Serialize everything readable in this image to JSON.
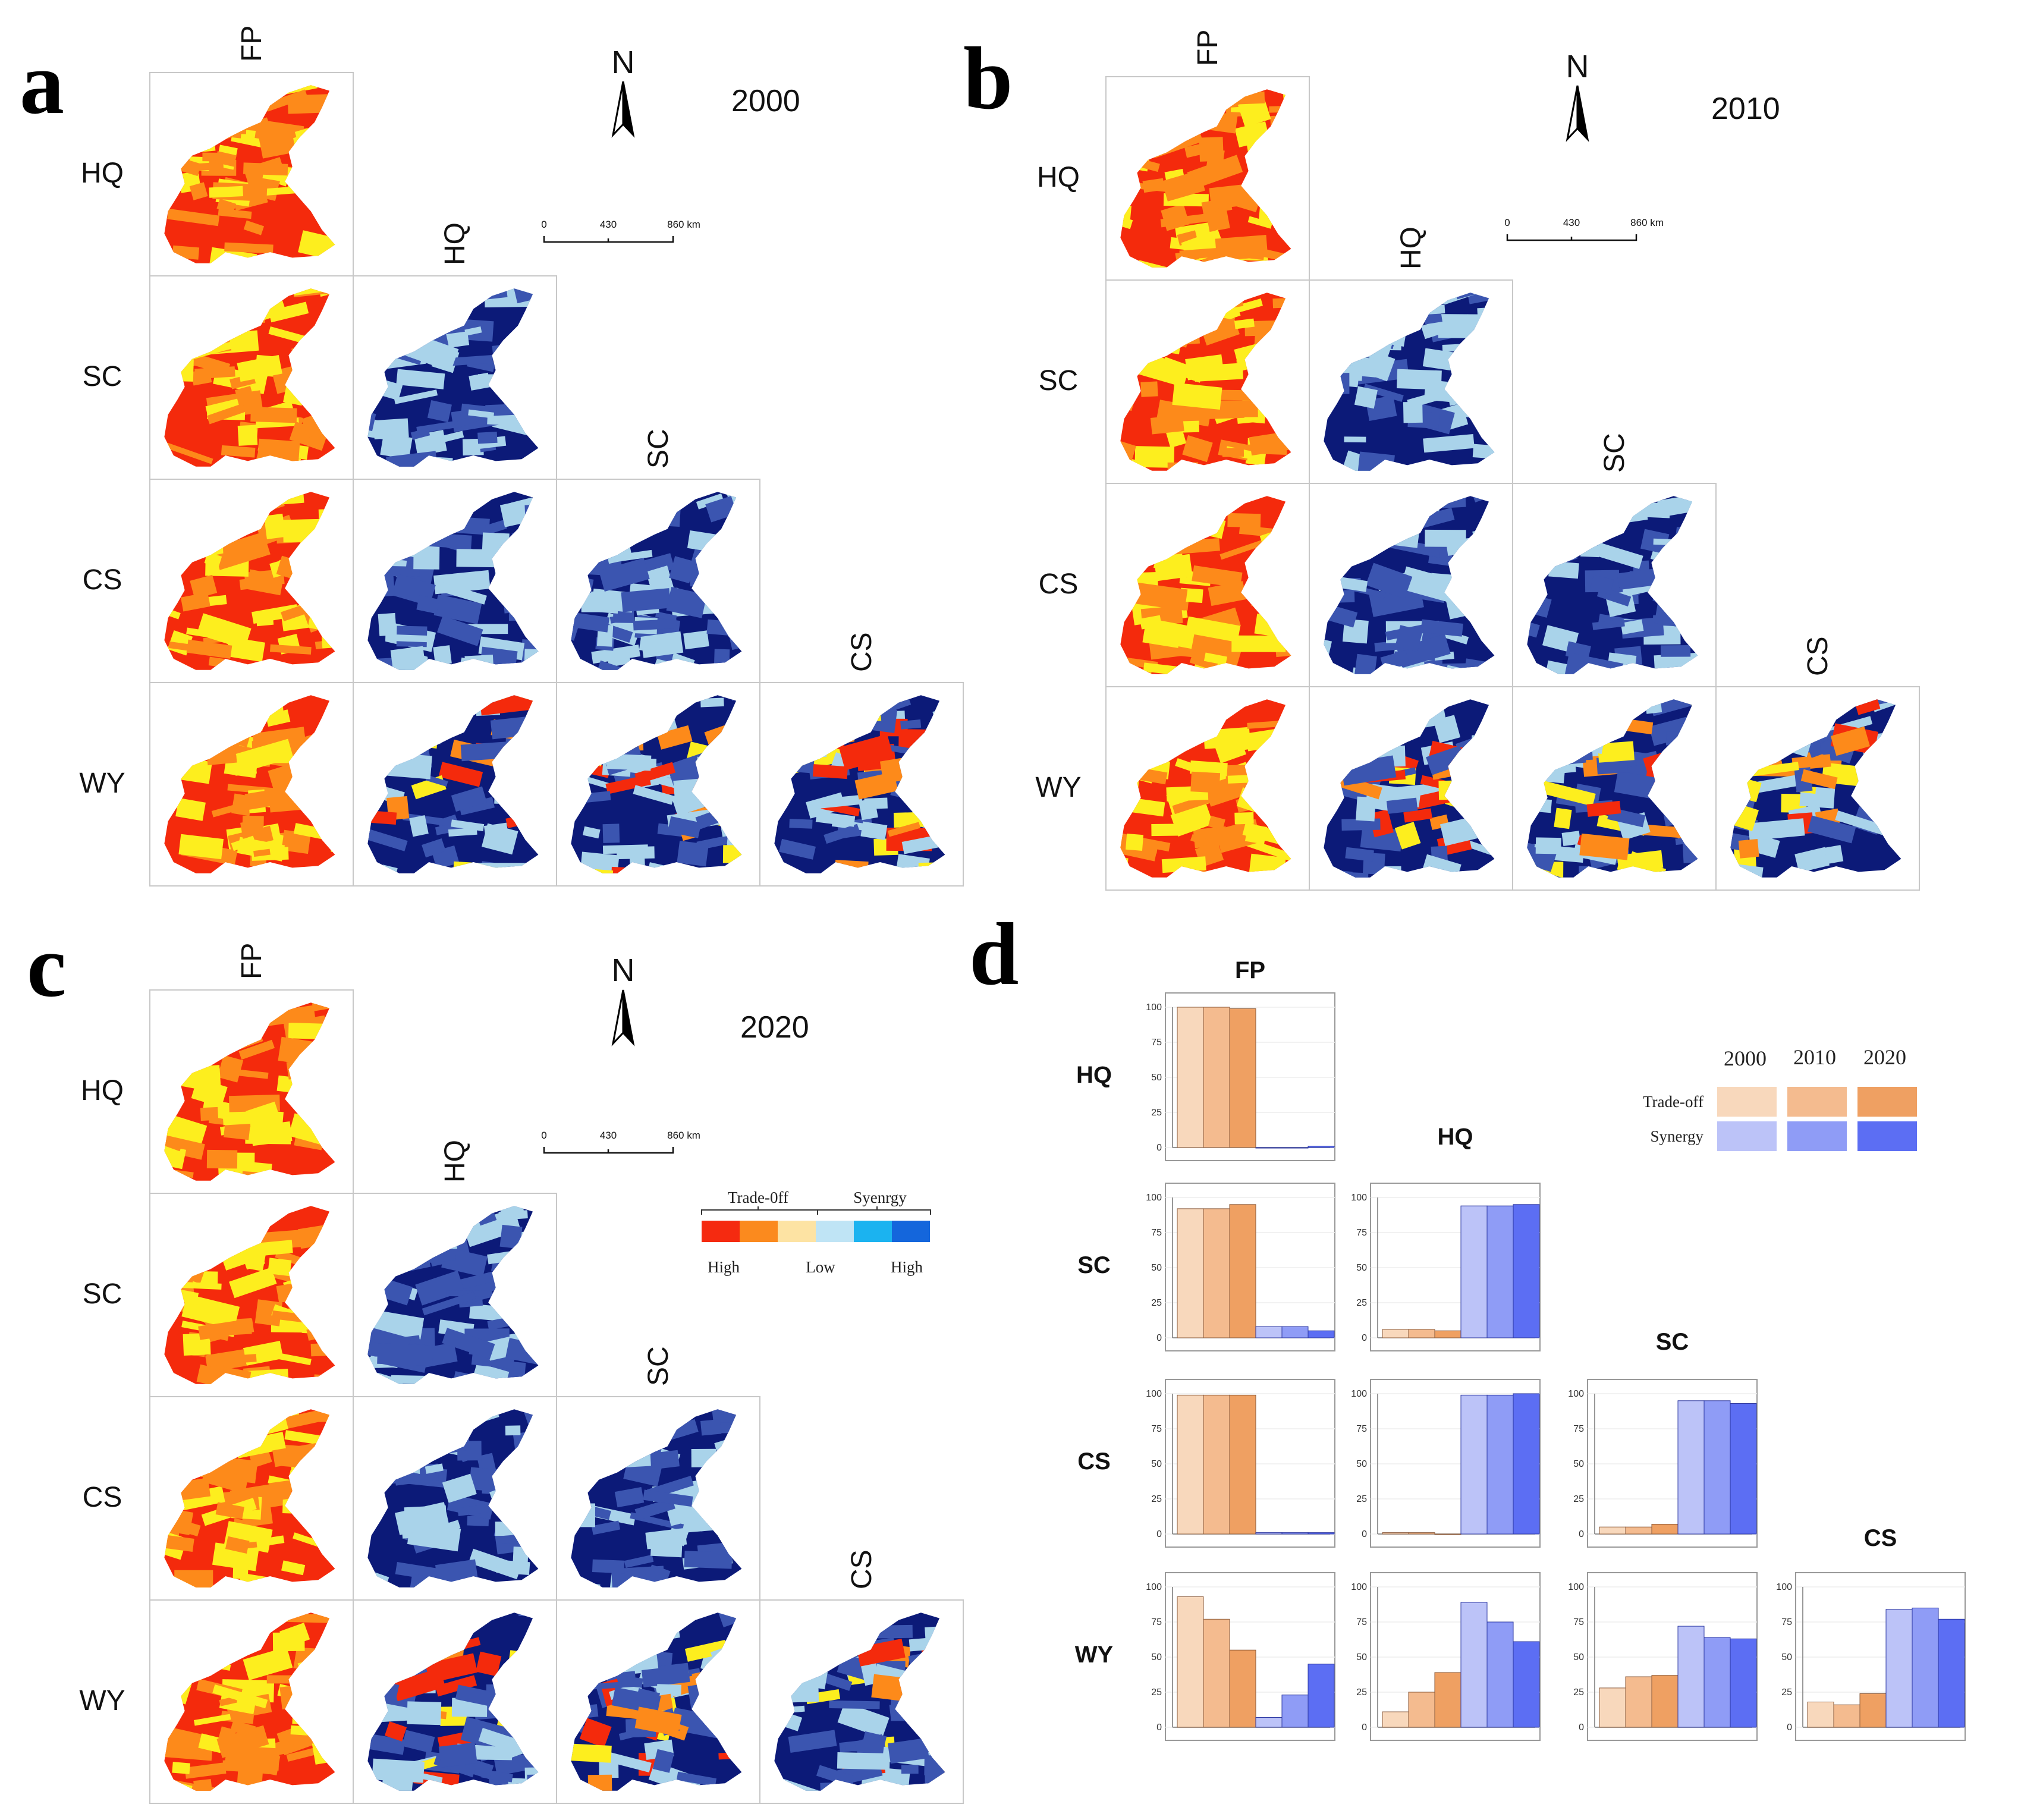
{
  "panels": {
    "a": {
      "letter": "a",
      "year": "2000"
    },
    "b": {
      "letter": "b",
      "year": "2010"
    },
    "c": {
      "letter": "c",
      "year": "2020"
    },
    "d": {
      "letter": "d"
    }
  },
  "matrix": {
    "row_labels": [
      "HQ",
      "SC",
      "CS",
      "WY"
    ],
    "col_labels": [
      "FP",
      "HQ",
      "SC",
      "CS"
    ]
  },
  "north_label": "N",
  "scale_bar": {
    "ticks": [
      "0",
      "430",
      "860 km"
    ]
  },
  "map_legend": {
    "trade_off": "Trade-0ff",
    "synergy": "Syenrgy",
    "high_left": "High",
    "low": "Low",
    "high_right": "High",
    "colors": [
      "#f52a10",
      "#fb8a1e",
      "#fde3a3",
      "#bfe4f5",
      "#1bb3f0",
      "#1466dc"
    ]
  },
  "palette": {
    "map_trade": [
      "#f42a0c",
      "#fd8a1a",
      "#fdee1e"
    ],
    "map_syn": [
      "#0c1a78",
      "#3b55b0",
      "#a9d3ea"
    ]
  },
  "chart_data": {
    "type": "bar",
    "title": "",
    "ylim": [
      0,
      100
    ],
    "yticks": [
      "0",
      "25",
      "50",
      "75",
      "100"
    ],
    "legend": {
      "years": [
        "2000",
        "2010",
        "2020"
      ],
      "rows": [
        "Trade-off",
        "Synergy"
      ],
      "tradeoff_colors": [
        "#f8d8bc",
        "#f4bb8f",
        "#efa062"
      ],
      "synergy_colors": [
        "#bcc3f8",
        "#8f9cf6",
        "#5c6ef3"
      ]
    },
    "panels": [
      {
        "row": "HQ",
        "col": "FP",
        "series": [
          {
            "name": "Trade-off",
            "values": [
              100,
              100,
              99
            ]
          },
          {
            "name": "Synergy",
            "values": [
              0,
              0,
              1
            ]
          }
        ]
      },
      {
        "row": "SC",
        "col": "FP",
        "series": [
          {
            "name": "Trade-off",
            "values": [
              92,
              92,
              95
            ]
          },
          {
            "name": "Synergy",
            "values": [
              8,
              8,
              5
            ]
          }
        ]
      },
      {
        "row": "SC",
        "col": "HQ",
        "series": [
          {
            "name": "Trade-off",
            "values": [
              6,
              6,
              5
            ]
          },
          {
            "name": "Synergy",
            "values": [
              94,
              94,
              95
            ]
          }
        ]
      },
      {
        "row": "CS",
        "col": "FP",
        "series": [
          {
            "name": "Trade-off",
            "values": [
              99,
              99,
              99
            ]
          },
          {
            "name": "Synergy",
            "values": [
              1,
              1,
              1
            ]
          }
        ]
      },
      {
        "row": "CS",
        "col": "HQ",
        "series": [
          {
            "name": "Trade-off",
            "values": [
              1,
              1,
              0
            ]
          },
          {
            "name": "Synergy",
            "values": [
              99,
              99,
              100
            ]
          }
        ]
      },
      {
        "row": "CS",
        "col": "SC",
        "series": [
          {
            "name": "Trade-off",
            "values": [
              5,
              5,
              7
            ]
          },
          {
            "name": "Synergy",
            "values": [
              95,
              95,
              93
            ]
          }
        ]
      },
      {
        "row": "WY",
        "col": "FP",
        "series": [
          {
            "name": "Trade-off",
            "values": [
              93,
              77,
              55
            ]
          },
          {
            "name": "Synergy",
            "values": [
              7,
              23,
              45
            ]
          }
        ]
      },
      {
        "row": "WY",
        "col": "HQ",
        "series": [
          {
            "name": "Trade-off",
            "values": [
              11,
              25,
              39
            ]
          },
          {
            "name": "Synergy",
            "values": [
              89,
              75,
              61
            ]
          }
        ]
      },
      {
        "row": "WY",
        "col": "SC",
        "series": [
          {
            "name": "Trade-off",
            "values": [
              28,
              36,
              37
            ]
          },
          {
            "name": "Synergy",
            "values": [
              72,
              64,
              63
            ]
          }
        ]
      },
      {
        "row": "WY",
        "col": "CS",
        "series": [
          {
            "name": "Trade-off",
            "values": [
              18,
              16,
              24
            ]
          },
          {
            "name": "Synergy",
            "values": [
              84,
              85,
              77
            ]
          }
        ]
      }
    ]
  }
}
